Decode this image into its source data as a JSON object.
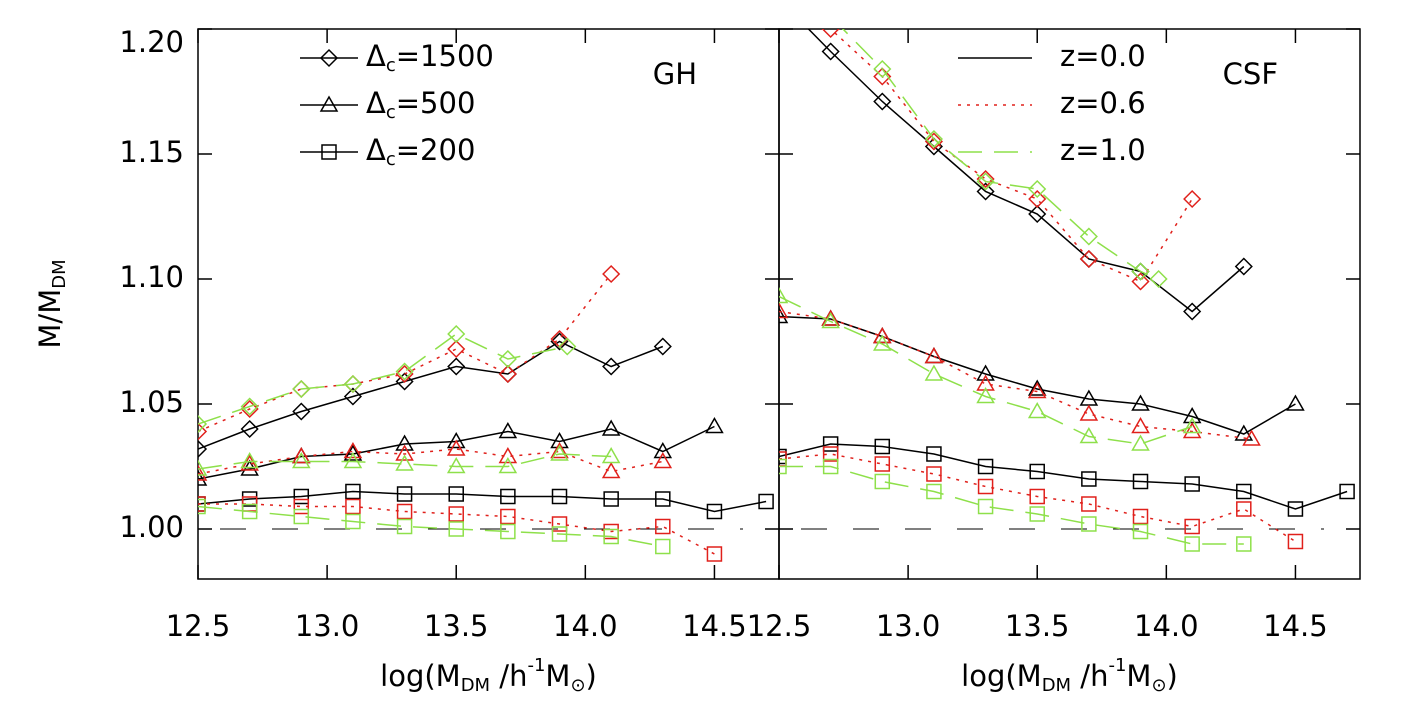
{
  "chart_data": [
    {
      "type": "line",
      "annotation": "GH",
      "xlabel": [
        "log(M",
        "DM",
        " /h",
        "-1",
        "M",
        "⊙",
        ")"
      ],
      "ylabel": [
        "M/M",
        "DM"
      ],
      "xlim": [
        12.5,
        14.75
      ],
      "ylim": [
        0.98,
        1.2
      ],
      "xticks": [
        12.5,
        {
          "value": 13,
          "label": "13.0"
        },
        13.5,
        {
          "value": 14,
          "label": "14.0"
        },
        14.5
      ],
      "yticks": [
        {
          "value": 1,
          "label": "1.00"
        },
        1.05,
        {
          "value": 1.1,
          "label": "1.10"
        },
        1.15,
        {
          "value": 1.2,
          "label": "1.20"
        }
      ],
      "ytick_labels": true,
      "hline": 1,
      "marker_legend": [
        {
          "symbol": "Δ",
          "sub": "c",
          "text": "=1500",
          "marker": "diamond"
        },
        {
          "symbol": "Δ",
          "sub": "c",
          "text": "=500",
          "marker": "triangle"
        },
        {
          "symbol": "Δ",
          "sub": "c",
          "text": "=200",
          "marker": "square"
        }
      ],
      "series": [
        {
          "marker": "diamond",
          "color": "#000000",
          "dash": "solid",
          "x": [
            12.5,
            12.7,
            12.9,
            13.1,
            13.3,
            13.5,
            13.7,
            13.9,
            14.1,
            14.3
          ],
          "values": [
            1.032,
            1.04,
            1.047,
            1.053,
            1.059,
            1.065,
            1.062,
            1.075,
            1.065,
            1.073
          ]
        },
        {
          "marker": "diamond",
          "color": "#e0201b",
          "dash": "dotted",
          "x": [
            12.5,
            12.7,
            12.9,
            13.1,
            13.3,
            13.5,
            13.7,
            13.9,
            14.1
          ],
          "values": [
            1.039,
            1.048,
            1.056,
            1.058,
            1.062,
            1.072,
            1.062,
            1.076,
            1.102
          ]
        },
        {
          "marker": "diamond",
          "color": "#8ee04a",
          "dash": "dashed",
          "x": [
            12.5,
            12.7,
            12.9,
            13.1,
            13.3,
            13.5,
            13.7,
            13.93
          ],
          "values": [
            1.042,
            1.049,
            1.056,
            1.058,
            1.063,
            1.078,
            1.068,
            1.073
          ]
        },
        {
          "marker": "triangle",
          "color": "#000000",
          "dash": "solid",
          "x": [
            12.5,
            12.7,
            12.9,
            13.1,
            13.3,
            13.5,
            13.7,
            13.9,
            14.1,
            14.3,
            14.5
          ],
          "values": [
            1.02,
            1.024,
            1.029,
            1.03,
            1.034,
            1.035,
            1.039,
            1.035,
            1.04,
            1.031,
            1.041
          ]
        },
        {
          "marker": "triangle",
          "color": "#e0201b",
          "dash": "dotted",
          "x": [
            12.5,
            12.7,
            12.9,
            13.1,
            13.3,
            13.5,
            13.7,
            13.9,
            14.1,
            14.3
          ],
          "values": [
            1.022,
            1.026,
            1.029,
            1.031,
            1.03,
            1.032,
            1.029,
            1.031,
            1.023,
            1.027
          ]
        },
        {
          "marker": "triangle",
          "color": "#8ee04a",
          "dash": "dashed",
          "x": [
            12.5,
            12.7,
            12.9,
            13.1,
            13.3,
            13.5,
            13.7,
            13.9,
            14.1
          ],
          "values": [
            1.024,
            1.027,
            1.027,
            1.027,
            1.026,
            1.025,
            1.025,
            1.03,
            1.029
          ]
        },
        {
          "marker": "square",
          "color": "#000000",
          "dash": "solid",
          "x": [
            12.5,
            12.7,
            12.9,
            13.1,
            13.3,
            13.5,
            13.7,
            13.9,
            14.1,
            14.3,
            14.5,
            14.7
          ],
          "values": [
            1.01,
            1.012,
            1.013,
            1.015,
            1.014,
            1.014,
            1.013,
            1.013,
            1.012,
            1.012,
            1.007,
            1.011
          ]
        },
        {
          "marker": "square",
          "color": "#e0201b",
          "dash": "dotted",
          "x": [
            12.5,
            12.7,
            12.9,
            13.1,
            13.3,
            13.5,
            13.7,
            13.9,
            14.1,
            14.3,
            14.5
          ],
          "values": [
            1.01,
            1.01,
            1.009,
            1.009,
            1.007,
            1.006,
            1.005,
            1.002,
            0.999,
            1.001,
            0.99
          ]
        },
        {
          "marker": "square",
          "color": "#8ee04a",
          "dash": "dashed",
          "x": [
            12.5,
            12.7,
            12.9,
            13.1,
            13.3,
            13.5,
            13.7,
            13.9,
            14.1,
            14.3
          ],
          "values": [
            1.009,
            1.007,
            1.005,
            1.003,
            1.001,
            1.0,
            0.999,
            0.998,
            0.997,
            0.993
          ]
        }
      ]
    },
    {
      "type": "line",
      "annotation": "CSF",
      "xlabel": [
        "log(M",
        "DM",
        " /h",
        "-1",
        "M",
        "⊙",
        ")"
      ],
      "xlim": [
        12.5,
        14.75
      ],
      "ylim": [
        0.98,
        1.2
      ],
      "xticks": [
        12.5,
        {
          "value": 13,
          "label": "13.0"
        },
        13.5,
        {
          "value": 14,
          "label": "14.0"
        },
        14.5
      ],
      "yticks": [
        1,
        1.05,
        1.1,
        1.15,
        1.2
      ],
      "ytick_labels": false,
      "hline": 1,
      "line_legend": [
        {
          "text": "z=0.0",
          "color": "#000000",
          "dash": "solid"
        },
        {
          "text": "z=0.6",
          "color": "#e0201b",
          "dash": "dotted"
        },
        {
          "text": "z=1.0",
          "color": "#8ee04a",
          "dash": "dashed"
        }
      ],
      "series": [
        {
          "marker": "diamond",
          "color": "#000000",
          "dash": "solid",
          "x": [
            12.5,
            12.7,
            12.9,
            13.1,
            13.3,
            13.5,
            13.7,
            13.9,
            14.1,
            14.3
          ],
          "values": [
            1.212,
            1.191,
            1.171,
            1.153,
            1.135,
            1.126,
            1.108,
            1.103,
            1.087,
            1.105
          ]
        },
        {
          "marker": "diamond",
          "color": "#e0201b",
          "dash": "dotted",
          "x": [
            12.5,
            12.7,
            12.9,
            13.1,
            13.3,
            13.5,
            13.7,
            13.9,
            14.1
          ],
          "values": [
            1.222,
            1.2,
            1.181,
            1.155,
            1.14,
            1.132,
            1.108,
            1.099,
            1.132
          ]
        },
        {
          "marker": "diamond",
          "color": "#8ee04a",
          "dash": "dashed",
          "x": [
            12.5,
            12.7,
            12.9,
            13.1,
            13.3,
            13.5,
            13.7,
            13.9,
            13.97
          ],
          "values": [
            1.225,
            1.205,
            1.184,
            1.156,
            1.139,
            1.136,
            1.117,
            1.103,
            1.1
          ]
        },
        {
          "marker": "triangle",
          "color": "#000000",
          "dash": "solid",
          "x": [
            12.5,
            12.7,
            12.9,
            13.1,
            13.3,
            13.5,
            13.7,
            13.9,
            14.1,
            14.3,
            14.5
          ],
          "values": [
            1.085,
            1.084,
            1.077,
            1.069,
            1.062,
            1.056,
            1.052,
            1.05,
            1.045,
            1.038,
            1.05
          ]
        },
        {
          "marker": "triangle",
          "color": "#e0201b",
          "dash": "dotted",
          "x": [
            12.5,
            12.7,
            12.9,
            13.1,
            13.3,
            13.5,
            13.7,
            13.9,
            14.1,
            14.33
          ],
          "values": [
            1.087,
            1.084,
            1.077,
            1.069,
            1.058,
            1.055,
            1.046,
            1.041,
            1.039,
            1.036
          ]
        },
        {
          "marker": "triangle",
          "color": "#8ee04a",
          "dash": "dashed",
          "x": [
            12.5,
            12.7,
            12.9,
            13.1,
            13.3,
            13.5,
            13.7,
            13.9,
            14.1
          ],
          "values": [
            1.093,
            1.083,
            1.074,
            1.062,
            1.053,
            1.047,
            1.037,
            1.034,
            1.041
          ]
        },
        {
          "marker": "square",
          "color": "#000000",
          "dash": "solid",
          "x": [
            12.5,
            12.7,
            12.9,
            13.1,
            13.3,
            13.5,
            13.7,
            13.9,
            14.1,
            14.3,
            14.5,
            14.7
          ],
          "values": [
            1.029,
            1.034,
            1.033,
            1.03,
            1.025,
            1.023,
            1.02,
            1.019,
            1.018,
            1.015,
            1.008,
            1.015
          ]
        },
        {
          "marker": "square",
          "color": "#e0201b",
          "dash": "dotted",
          "x": [
            12.5,
            12.7,
            12.9,
            13.1,
            13.3,
            13.5,
            13.7,
            13.9,
            14.1,
            14.3,
            14.5
          ],
          "values": [
            1.028,
            1.03,
            1.026,
            1.022,
            1.017,
            1.013,
            1.01,
            1.005,
            1.001,
            1.008,
            0.995
          ]
        },
        {
          "marker": "square",
          "color": "#8ee04a",
          "dash": "dashed",
          "x": [
            12.5,
            12.7,
            12.9,
            13.1,
            13.3,
            13.5,
            13.7,
            13.9,
            14.1,
            14.3
          ],
          "values": [
            1.025,
            1.025,
            1.019,
            1.015,
            1.009,
            1.006,
            1.002,
            0.999,
            0.994,
            0.994
          ]
        }
      ]
    }
  ]
}
